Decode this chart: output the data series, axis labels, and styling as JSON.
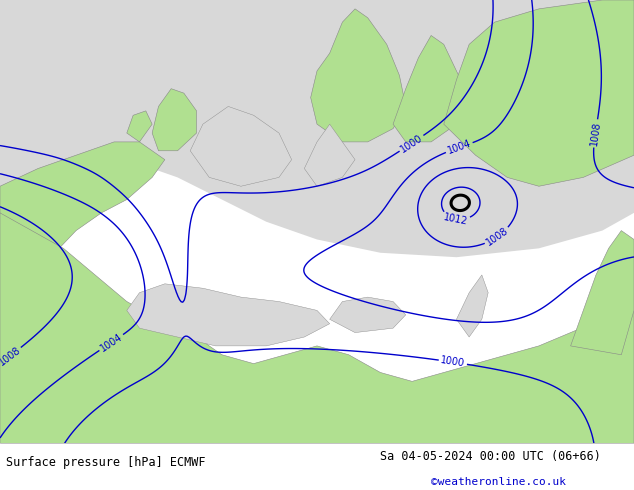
{
  "title_left": "Surface pressure [hPa] ECMWF",
  "title_right": "Sa 04-05-2024 00:00 UTC (06+66)",
  "credit": "©weatheronline.co.uk",
  "bg_green": "#b0e090",
  "bg_gray": "#d8d8d8",
  "fig_width": 6.34,
  "fig_height": 4.9,
  "dpi": 100,
  "footer_text_color": "#000000",
  "credit_color": "#0000cc"
}
